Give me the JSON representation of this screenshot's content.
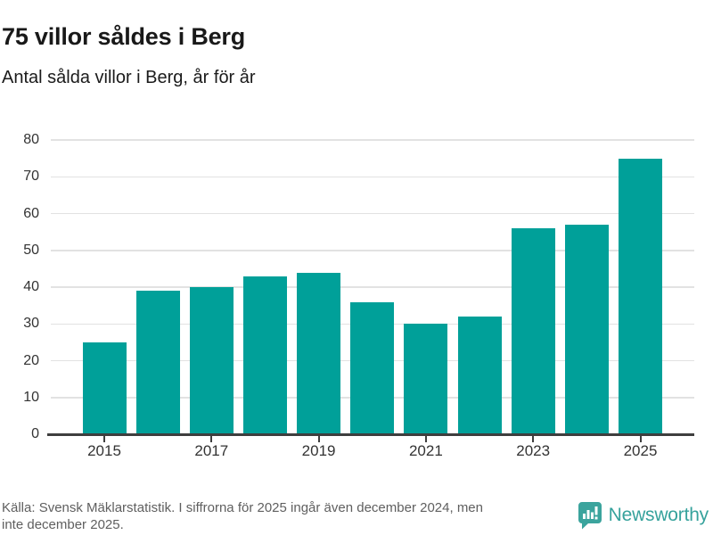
{
  "header": {
    "title": "75 villor såldes i Berg",
    "subtitle": "Antal sålda villor i Berg, år för år"
  },
  "chart_data": {
    "type": "bar",
    "title": "75 villor såldes i Berg",
    "subtitle": "Antal sålda villor i Berg, år för år",
    "categories": [
      2015,
      2016,
      2017,
      2018,
      2019,
      2020,
      2021,
      2022,
      2023,
      2024,
      2025
    ],
    "values": [
      25,
      39,
      40,
      43,
      44,
      36,
      30,
      32,
      56,
      57,
      75
    ],
    "x_tick_labels": [
      "2015",
      "2017",
      "2019",
      "2021",
      "2023",
      "2025"
    ],
    "y_ticks": [
      0,
      10,
      20,
      30,
      40,
      50,
      60,
      70,
      80
    ],
    "ylim": [
      0,
      80
    ],
    "xlabel": "",
    "ylabel": "",
    "grid": true,
    "legend": false,
    "bar_color": "#00a099",
    "axis_color": "#3e3e3e",
    "gridline_color": "#e2e2e2",
    "tick_label_color": "#333333"
  },
  "footer": {
    "source_lines": [
      "Källa: Svensk Mäklarstatistik. I siffrorna för 2025 ingår även december 2024, men",
      "inte december 2025."
    ],
    "brand": {
      "name": "Newsworthy",
      "logo_icon": "bar-chart-speech-bubble",
      "color": "#36a29c"
    }
  }
}
